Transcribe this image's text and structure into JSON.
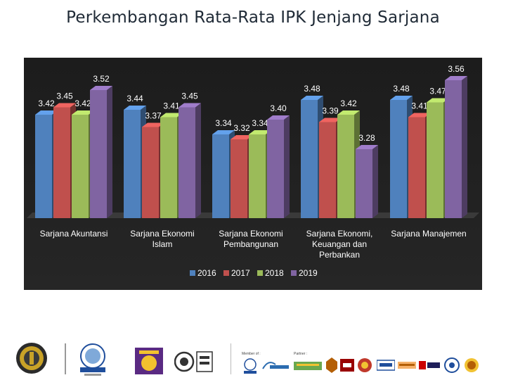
{
  "slide": {
    "title": "Perkembangan Rata-Rata IPK Jenjang Sarjana"
  },
  "chart_data": {
    "type": "bar",
    "categories": [
      "Sarjana Akuntansi",
      "Sarjana Ekonomi Islam",
      "Sarjana Ekonomi Pembangunan",
      "Sarjana Ekonomi, Keuangan dan Perbankan",
      "Sarjana Manajemen"
    ],
    "series": [
      {
        "name": "2016",
        "color": "#4f81bd",
        "values": [
          3.42,
          3.44,
          3.34,
          3.48,
          3.48
        ]
      },
      {
        "name": "2017",
        "color": "#c0504d",
        "values": [
          3.45,
          3.37,
          3.32,
          3.39,
          3.41
        ]
      },
      {
        "name": "2018",
        "color": "#9bbb59",
        "values": [
          3.42,
          3.41,
          3.34,
          3.42,
          3.47
        ]
      },
      {
        "name": "2019",
        "color": "#8064a2",
        "values": [
          3.52,
          3.45,
          3.4,
          3.28,
          3.56
        ]
      }
    ],
    "data_labels": [
      [
        "3.42",
        "3.44",
        "3.34",
        "3.48",
        "3.48"
      ],
      [
        "3.45",
        "3.37",
        "3.32",
        "3.39",
        "3.41"
      ],
      [
        "3.42",
        "3.41",
        "3.34",
        "3.42",
        "3.47"
      ],
      [
        "3.52",
        "3.45",
        "3.40",
        "3.28",
        "3.56"
      ]
    ],
    "title": "",
    "xlabel": "",
    "ylabel": "",
    "ylim": [
      3.0,
      3.6
    ],
    "grid": false,
    "legend_position": "bottom",
    "style": "3d-bar"
  },
  "footer": {
    "member_label": "Member of :",
    "partner_label": "Partner :",
    "logos": [
      "university-seal",
      "abest21",
      "ub-badge",
      "iso-certification",
      "aacsb",
      "vmsproject",
      "partner-1",
      "uum",
      "partner-2",
      "partner-3",
      "hague",
      "msu",
      "partner-4",
      "partner-5"
    ]
  }
}
